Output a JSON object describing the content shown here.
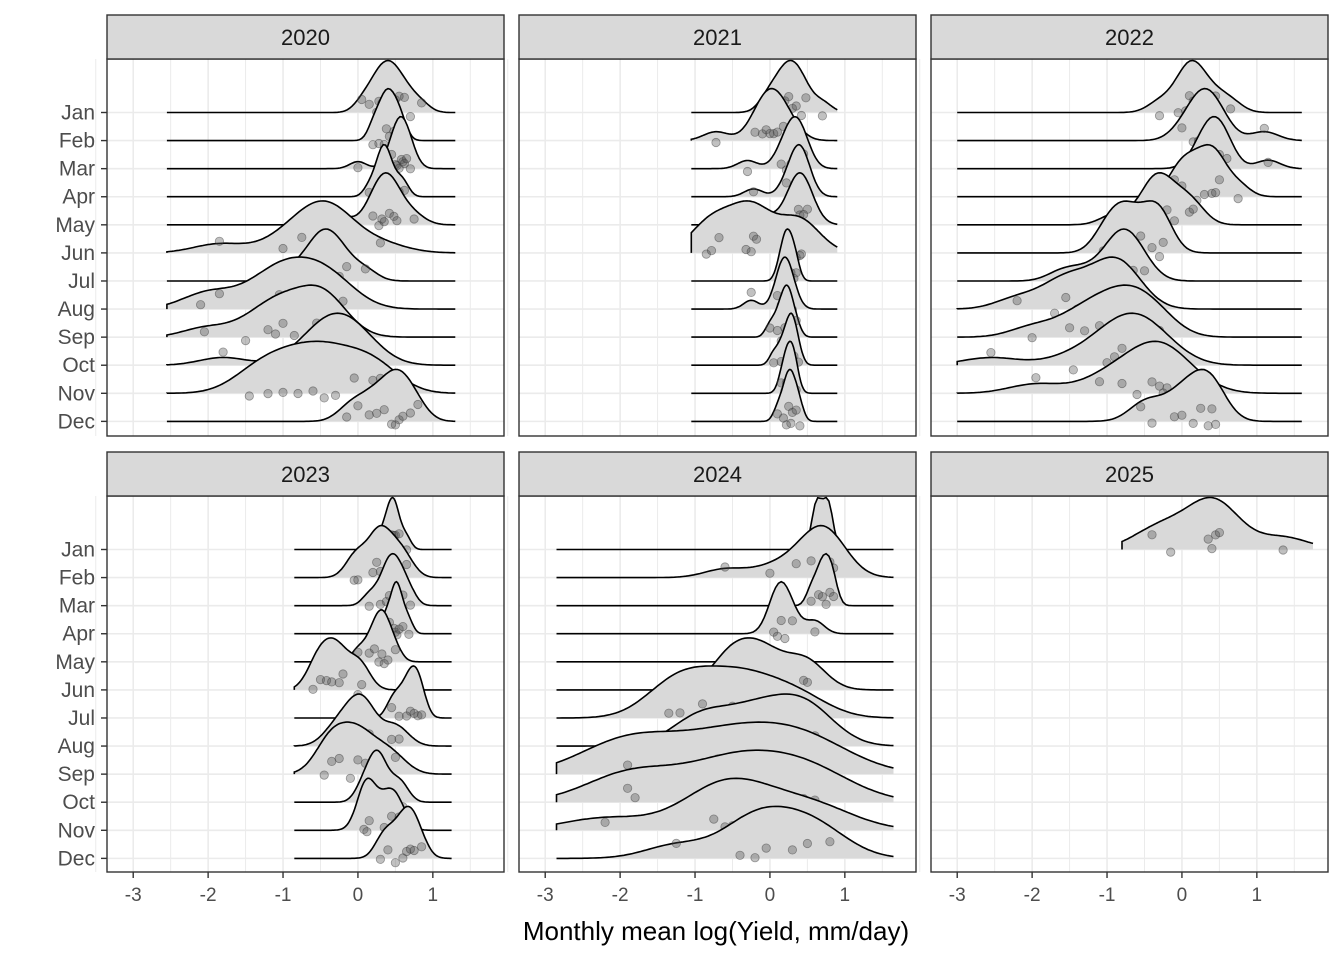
{
  "chart_data": {
    "type": "area",
    "xlabel": "Monthly mean log(Yield, mm/day)",
    "ylabel": "",
    "xlim": [
      -3.35,
      1.95
    ],
    "x_ticks": [
      "-3",
      "-2",
      "-1",
      "0",
      "1"
    ],
    "grid": "on",
    "colors": {
      "fill": "#d9d9d9",
      "point": "#4d4d4d",
      "line": "#000000",
      "strip": "#d9d9d9",
      "border": "#333333",
      "grid": "#ebebeb"
    },
    "months": [
      "Jan",
      "Feb",
      "Mar",
      "Apr",
      "May",
      "Jun",
      "Jul",
      "Aug",
      "Sep",
      "Oct",
      "Nov",
      "Dec"
    ],
    "panels": [
      {
        "year": "2020",
        "range": [
          -2.55,
          1.3
        ],
        "months": [
          {
            "month": "Jan",
            "points": [
              0.05,
              0.15,
              0.25,
              0.28,
              0.32,
              0.38,
              0.42,
              0.45,
              0.5,
              0.55,
              0.62,
              0.7,
              0.85
            ]
          },
          {
            "month": "Feb",
            "points": [
              0.2,
              0.28,
              0.35,
              0.38,
              0.42,
              0.48,
              0.52,
              0.6
            ]
          },
          {
            "month": "Mar",
            "points": [
              0.0,
              0.45,
              0.5,
              0.52,
              0.55,
              0.58,
              0.6,
              0.62,
              0.65,
              0.7
            ]
          },
          {
            "month": "Apr",
            "points": [
              0.15,
              0.25,
              0.3,
              0.32,
              0.35,
              0.38,
              0.4,
              0.45,
              0.55,
              0.62
            ]
          },
          {
            "month": "May",
            "points": [
              -0.25,
              0.2,
              0.28,
              0.32,
              0.35,
              0.42,
              0.48,
              0.52,
              0.75
            ]
          },
          {
            "month": "Jun",
            "points": [
              -1.85,
              -1.0,
              -0.75,
              -0.6,
              -0.45,
              -0.38,
              -0.32,
              -0.28,
              0.3
            ]
          },
          {
            "month": "Jul",
            "points": [
              -0.85,
              -0.65,
              -0.55,
              -0.48,
              -0.42,
              -0.35,
              -0.25,
              -0.15,
              0.1
            ]
          },
          {
            "month": "Aug",
            "points": [
              -2.1,
              -1.85,
              -1.3,
              -1.2,
              -1.05,
              -0.9,
              -0.75,
              -0.65,
              -0.5,
              -0.35,
              -0.2
            ]
          },
          {
            "month": "Sep",
            "points": [
              -2.05,
              -1.5,
              -1.2,
              -1.1,
              -1.0,
              -0.85,
              -0.6,
              -0.55,
              -0.5,
              -0.38,
              -0.3
            ]
          },
          {
            "month": "Oct",
            "points": [
              -1.8,
              -0.75,
              -0.55,
              -0.45,
              -0.35,
              -0.28,
              -0.2,
              -0.1,
              0.0,
              0.15
            ]
          },
          {
            "month": "Nov",
            "points": [
              -1.45,
              -1.2,
              -1.0,
              -0.8,
              -0.6,
              -0.45,
              -0.3,
              -0.05,
              0.2,
              0.3
            ]
          },
          {
            "month": "Dec",
            "points": [
              -0.15,
              0.0,
              0.15,
              0.25,
              0.35,
              0.45,
              0.5,
              0.55,
              0.6,
              0.7,
              0.8
            ]
          }
        ]
      },
      {
        "year": "2021",
        "range": [
          -1.05,
          0.9
        ],
        "months": [
          {
            "month": "Jan",
            "points": [
              -0.05,
              0.05,
              0.15,
              0.2,
              0.25,
              0.3,
              0.35,
              0.42,
              0.48,
              0.7
            ]
          },
          {
            "month": "Feb",
            "points": [
              -0.72,
              -0.2,
              -0.1,
              -0.05,
              0.0,
              0.05,
              0.1,
              0.18,
              0.28
            ]
          },
          {
            "month": "Mar",
            "points": [
              -0.3,
              0.15,
              0.22,
              0.28,
              0.32,
              0.35,
              0.38,
              0.42,
              0.45
            ]
          },
          {
            "month": "Apr",
            "points": [
              -0.22,
              0.22,
              0.3,
              0.35,
              0.38,
              0.4,
              0.42,
              0.45,
              0.48
            ]
          },
          {
            "month": "May",
            "points": [
              -0.3,
              -0.05,
              0.3,
              0.35,
              0.38,
              0.4,
              0.42,
              0.45,
              0.5
            ]
          },
          {
            "month": "Jun",
            "points": [
              -0.85,
              -0.78,
              -0.68,
              -0.32,
              -0.25,
              -0.22,
              -0.18,
              0.35,
              0.4,
              0.42
            ]
          },
          {
            "month": "Jul",
            "points": [
              0.12,
              0.18,
              0.2,
              0.22,
              0.25,
              0.28,
              0.32,
              0.35
            ]
          },
          {
            "month": "Aug",
            "points": [
              -0.25,
              0.1,
              0.15,
              0.18,
              0.2,
              0.22,
              0.25,
              0.3
            ]
          },
          {
            "month": "Sep",
            "points": [
              0.0,
              0.1,
              0.15,
              0.2,
              0.22,
              0.25,
              0.28,
              0.35
            ]
          },
          {
            "month": "Oct",
            "points": [
              0.05,
              0.15,
              0.2,
              0.25,
              0.28,
              0.3,
              0.32,
              0.38
            ]
          },
          {
            "month": "Nov",
            "points": [
              0.15,
              0.2,
              0.22,
              0.25,
              0.28,
              0.3,
              0.32,
              0.35
            ]
          },
          {
            "month": "Dec",
            "points": [
              0.1,
              0.18,
              0.22,
              0.25,
              0.28,
              0.3,
              0.35,
              0.4
            ]
          }
        ]
      },
      {
        "year": "2022",
        "range": [
          -3.0,
          1.6
        ],
        "months": [
          {
            "month": "Jan",
            "points": [
              -0.3,
              -0.05,
              0.05,
              0.1,
              0.15,
              0.2,
              0.3,
              0.45,
              0.65
            ]
          },
          {
            "month": "Feb",
            "points": [
              0.0,
              0.15,
              0.22,
              0.28,
              0.32,
              0.38,
              0.45,
              0.55,
              1.1
            ]
          },
          {
            "month": "Mar",
            "points": [
              0.2,
              0.3,
              0.35,
              0.4,
              0.45,
              0.5,
              0.55,
              0.6,
              1.15
            ]
          },
          {
            "month": "Apr",
            "points": [
              -0.1,
              0.0,
              0.1,
              0.2,
              0.3,
              0.4,
              0.45,
              0.5,
              0.75
            ]
          },
          {
            "month": "May",
            "points": [
              -0.9,
              -0.5,
              -0.4,
              -0.35,
              -0.3,
              -0.2,
              -0.1,
              0.1,
              0.15
            ]
          },
          {
            "month": "Jun",
            "points": [
              -1.05,
              -0.9,
              -0.8,
              -0.7,
              -0.55,
              -0.4,
              -0.3,
              -0.25
            ]
          },
          {
            "month": "Jul",
            "points": [
              -1.6,
              -1.3,
              -1.0,
              -0.9,
              -0.85,
              -0.75,
              -0.7,
              -0.65,
              -0.5
            ]
          },
          {
            "month": "Aug",
            "points": [
              -2.2,
              -1.7,
              -1.55,
              -1.4,
              -1.1,
              -0.95,
              -0.85,
              -0.8,
              -0.7
            ]
          },
          {
            "month": "Sep",
            "points": [
              -2.0,
              -1.5,
              -1.3,
              -1.1,
              -0.95,
              -0.8,
              -0.7,
              -0.6,
              -0.4,
              -0.3
            ]
          },
          {
            "month": "Oct",
            "points": [
              -2.55,
              -1.45,
              -1.0,
              -0.9,
              -0.8,
              -0.7,
              -0.6,
              -0.5,
              -0.4,
              -0.3
            ]
          },
          {
            "month": "Nov",
            "points": [
              -1.95,
              -1.1,
              -0.8,
              -0.6,
              -0.4,
              -0.3,
              -0.25,
              -0.2,
              0.1
            ]
          },
          {
            "month": "Dec",
            "points": [
              -0.55,
              -0.4,
              -0.1,
              0.0,
              0.15,
              0.25,
              0.35,
              0.4,
              0.45
            ]
          }
        ]
      },
      {
        "year": "2023",
        "range": [
          -0.85,
          1.25
        ],
        "months": [
          {
            "month": "Jan",
            "points": [
              0.3,
              0.38,
              0.42,
              0.45,
              0.48,
              0.5,
              0.55,
              0.65
            ]
          },
          {
            "month": "Feb",
            "points": [
              -0.05,
              0.0,
              0.2,
              0.25,
              0.3,
              0.35,
              0.45,
              0.55,
              0.65
            ]
          },
          {
            "month": "Mar",
            "points": [
              0.15,
              0.3,
              0.38,
              0.42,
              0.45,
              0.5,
              0.55,
              0.6,
              0.7
            ]
          },
          {
            "month": "Apr",
            "points": [
              0.35,
              0.42,
              0.48,
              0.5,
              0.52,
              0.55,
              0.6,
              0.68
            ]
          },
          {
            "month": "May",
            "points": [
              0.0,
              0.15,
              0.22,
              0.28,
              0.32,
              0.35,
              0.4,
              0.5
            ]
          },
          {
            "month": "Jun",
            "points": [
              -0.6,
              -0.5,
              -0.42,
              -0.35,
              -0.25,
              -0.2,
              0.0,
              0.05
            ]
          },
          {
            "month": "Jul",
            "points": [
              0.45,
              0.55,
              0.65,
              0.7,
              0.75,
              0.8,
              0.85
            ]
          },
          {
            "month": "Aug",
            "points": [
              -0.35,
              -0.2,
              -0.1,
              0.0,
              0.05,
              0.1,
              0.15,
              0.45,
              0.55
            ]
          },
          {
            "month": "Sep",
            "points": [
              -0.45,
              -0.35,
              -0.25,
              -0.1,
              0.0,
              0.1,
              0.3,
              0.5
            ]
          },
          {
            "month": "Oct",
            "points": [
              0.05,
              0.15,
              0.22,
              0.25,
              0.3,
              0.35,
              0.5,
              0.6
            ]
          },
          {
            "month": "Nov",
            "points": [
              0.08,
              0.12,
              0.15,
              0.35,
              0.45,
              0.55
            ]
          },
          {
            "month": "Dec",
            "points": [
              0.3,
              0.4,
              0.5,
              0.6,
              0.65,
              0.7,
              0.75,
              0.85
            ]
          }
        ]
      },
      {
        "year": "2024",
        "range": [
          -2.85,
          1.65
        ],
        "months": [
          {
            "month": "Jan",
            "points": [
              0.6,
              0.65,
              0.75,
              0.8
            ]
          },
          {
            "month": "Feb",
            "points": [
              -0.6,
              0.0,
              0.35,
              0.55,
              0.65,
              0.7,
              0.75,
              0.8,
              0.85
            ]
          },
          {
            "month": "Mar",
            "points": [
              0.55,
              0.65,
              0.7,
              0.75,
              0.8,
              0.85
            ]
          },
          {
            "month": "Apr",
            "points": [
              0.05,
              0.1,
              0.15,
              0.2,
              0.3,
              0.6
            ]
          },
          {
            "month": "May",
            "points": []
          },
          {
            "month": "Jun",
            "points": [
              -0.6,
              -0.5,
              -0.3,
              -0.1,
              0.0,
              0.45,
              0.5
            ]
          },
          {
            "month": "Jul",
            "points": [
              -1.35,
              -1.2,
              -0.9,
              -0.5,
              -0.35,
              0.05,
              0.45
            ]
          },
          {
            "month": "Aug",
            "points": [
              -1.0,
              -0.85,
              -0.3,
              -0.15,
              0.25,
              0.45,
              0.6
            ]
          },
          {
            "month": "Sep",
            "points": [
              -1.9,
              -1.85,
              -0.7,
              -0.45,
              0.35,
              0.5
            ]
          },
          {
            "month": "Oct",
            "points": [
              -1.9,
              -1.8,
              -0.75,
              -0.5,
              -0.15,
              0.45,
              0.6
            ]
          },
          {
            "month": "Nov",
            "points": [
              -2.2,
              -0.75,
              -0.6,
              -0.5,
              -0.4,
              0.5,
              0.6
            ]
          },
          {
            "month": "Dec",
            "points": [
              -1.25,
              -0.4,
              -0.2,
              -0.05,
              0.3,
              0.5,
              0.8
            ]
          }
        ]
      },
      {
        "year": "2025",
        "range": [
          -0.8,
          1.75
        ],
        "months": [
          {
            "month": "Jan",
            "points": [
              -0.4,
              -0.15,
              0.35,
              0.4,
              0.45,
              0.5,
              1.35
            ]
          }
        ]
      }
    ]
  }
}
